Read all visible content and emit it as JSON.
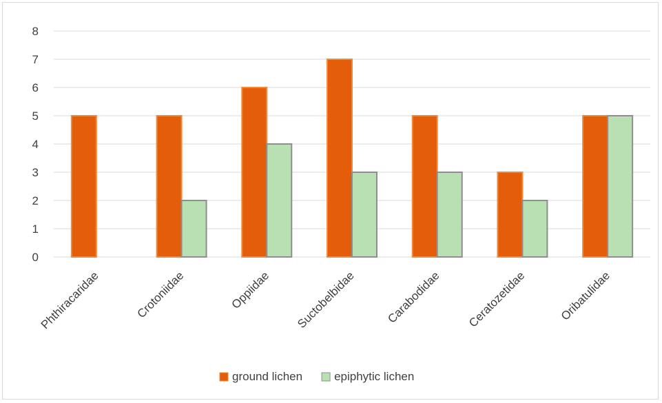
{
  "chart_data": {
    "type": "bar",
    "categories": [
      "Phthiracaridae",
      "Crotoniidae",
      "Oppiidae",
      "Suctobelbidae",
      "Carabodidae",
      "Ceratozetidae",
      "Oribatulidae"
    ],
    "series": [
      {
        "name": "ground lichen",
        "values": [
          5,
          5,
          6,
          7,
          5,
          3,
          5
        ],
        "color": "#e35d0a",
        "stroke": "#f28a3e"
      },
      {
        "name": "epiphytic lichen",
        "values": [
          0,
          2,
          4,
          3,
          3,
          2,
          5
        ],
        "color": "#b9e0b3",
        "stroke": "#8e8e8e"
      }
    ],
    "ylim": [
      0,
      8
    ],
    "yticks": [
      0,
      1,
      2,
      3,
      4,
      5,
      6,
      7,
      8
    ],
    "grid": true,
    "legend_position": "bottom",
    "title": "",
    "xlabel": "",
    "ylabel": ""
  }
}
